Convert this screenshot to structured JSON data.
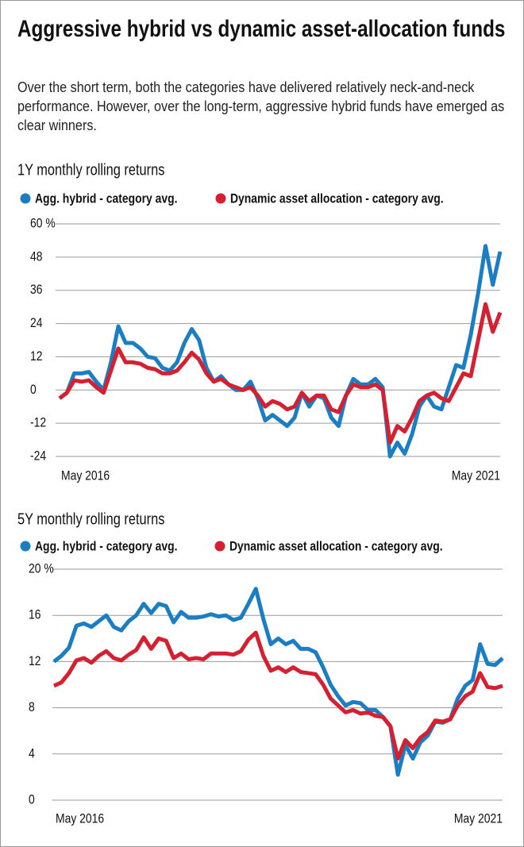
{
  "header": {
    "title": "Aggressive hybrid vs dynamic asset-allocation funds",
    "subtitle": "Over the short term, both the categories have delivered relatively neck-and-neck performance. However, over the long-term, aggressive hybrid funds have emerged as clear winners."
  },
  "chart_data": [
    {
      "type": "line",
      "title": "1Y monthly rolling returns",
      "categories": [
        "May 2016",
        null,
        null,
        null,
        null,
        null,
        null,
        null,
        null,
        null,
        null,
        null,
        null,
        null,
        null,
        null,
        null,
        null,
        null,
        null,
        null,
        null,
        null,
        null,
        null,
        null,
        null,
        null,
        null,
        null,
        null,
        null,
        null,
        null,
        null,
        null,
        null,
        null,
        null,
        null,
        null,
        null,
        null,
        null,
        null,
        null,
        null,
        null,
        null,
        null,
        null,
        null,
        null,
        null,
        null,
        null,
        null,
        null,
        null,
        null,
        "May 2021"
      ],
      "series": [
        {
          "name": "Agg. hybrid - category avg.",
          "color": "#1b7ec2",
          "values": [
            -3,
            -1,
            6,
            6,
            6.5,
            3,
            0,
            10,
            23,
            17,
            17,
            15,
            12,
            11.5,
            8,
            7,
            10,
            17,
            22,
            18,
            8,
            3,
            5,
            2,
            0,
            0,
            3,
            -3,
            -11,
            -9,
            -11,
            -13,
            -10,
            -1,
            -6,
            -2,
            -3,
            -10,
            -13,
            -2,
            4,
            2,
            2,
            4,
            1,
            -24,
            -19,
            -23,
            -16,
            -6,
            -2,
            -6,
            -7,
            1,
            9,
            8,
            20,
            35,
            52,
            38,
            50
          ]
        },
        {
          "name": "Dynamic asset allocation - category avg.",
          "color": "#d42030",
          "values": [
            -3,
            -1,
            3.5,
            3,
            3.5,
            1,
            -1,
            7,
            15,
            10,
            10,
            9.5,
            8,
            7.5,
            6,
            6,
            7,
            10,
            13.5,
            11,
            6,
            3,
            4,
            2,
            1,
            0,
            1,
            -2,
            -6,
            -4,
            -5,
            -7,
            -6,
            -1,
            -4,
            -2,
            -2,
            -7,
            -8,
            -2,
            2,
            1,
            1,
            2,
            0,
            -19,
            -13,
            -15,
            -10,
            -4,
            -2,
            -1,
            -3,
            -4,
            1,
            6,
            5,
            18,
            31,
            21,
            28
          ]
        }
      ],
      "ylim": [
        -24,
        60
      ],
      "yticks": [
        -24,
        -12,
        0,
        12,
        24,
        36,
        48,
        {
          "value": 60,
          "label": "60 %"
        }
      ],
      "grid": true
    },
    {
      "type": "line",
      "title": "5Y monthly rolling returns",
      "categories": [
        "May 2016",
        null,
        null,
        null,
        null,
        null,
        null,
        null,
        null,
        null,
        null,
        null,
        null,
        null,
        null,
        null,
        null,
        null,
        null,
        null,
        null,
        null,
        null,
        null,
        null,
        null,
        null,
        null,
        null,
        null,
        null,
        null,
        null,
        null,
        null,
        null,
        null,
        null,
        null,
        null,
        null,
        null,
        null,
        null,
        null,
        null,
        null,
        null,
        null,
        null,
        null,
        null,
        null,
        null,
        null,
        null,
        null,
        null,
        null,
        null,
        "May 2021"
      ],
      "series": [
        {
          "name": "Agg. hybrid - category avg.",
          "color": "#1b7ec2",
          "values": [
            12,
            12.5,
            13.2,
            15.1,
            15.3,
            15,
            15.5,
            16,
            15,
            14.7,
            15.5,
            16,
            17,
            16.2,
            17,
            16.8,
            15.4,
            16.3,
            15.8,
            15.8,
            15.9,
            16.1,
            15.9,
            16,
            15.6,
            15.8,
            17,
            18.3,
            15.7,
            13.5,
            14,
            13.5,
            13.8,
            13.1,
            13.1,
            12.8,
            11.5,
            10,
            9,
            8.2,
            8.5,
            8.4,
            7.8,
            7.8,
            7.2,
            6.4,
            2.2,
            4.8,
            3.6,
            5,
            5.6,
            6.8,
            6.7,
            7,
            8.8,
            9.9,
            10.4,
            13.5,
            11.8,
            11.7,
            12.3
          ]
        },
        {
          "name": "Dynamic asset allocation - category avg.",
          "color": "#d42030",
          "values": [
            9.9,
            10.2,
            11,
            12.1,
            12.3,
            11.9,
            12.5,
            12.9,
            12.3,
            12.1,
            12.6,
            13,
            14.1,
            13.1,
            14,
            13.8,
            12.3,
            12.7,
            12.2,
            12.3,
            12.2,
            12.7,
            12.7,
            12.7,
            12.6,
            12.9,
            13.9,
            14.5,
            12.5,
            11.2,
            11.5,
            11.1,
            11.5,
            11.1,
            11,
            10.9,
            10,
            8.8,
            8.2,
            7.6,
            7.8,
            7.5,
            7.6,
            7.3,
            7.2,
            6.4,
            3.6,
            5.2,
            4.5,
            5.4,
            5.9,
            6.9,
            6.8,
            7,
            8.2,
            9,
            9.4,
            11,
            9.8,
            9.7,
            9.9
          ]
        }
      ],
      "ylim": [
        0,
        20
      ],
      "yticks": [
        0,
        4,
        8,
        12,
        16,
        {
          "value": 20,
          "label": "20 %"
        }
      ],
      "grid": true
    }
  ]
}
